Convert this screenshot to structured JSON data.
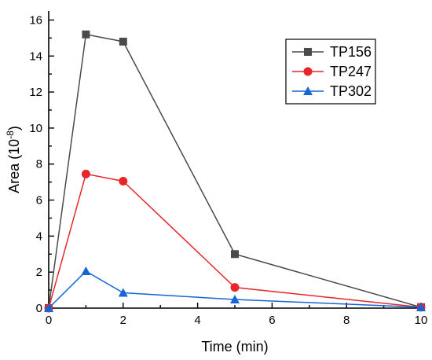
{
  "chart_data": {
    "type": "line",
    "xlabel": "Time (min)",
    "ylabel": "Area (10",
    "ylabel_exponent": "-8",
    "ylabel_close": ")",
    "xlim": [
      0,
      10
    ],
    "ylim": [
      0,
      16.5
    ],
    "x_ticks": [
      0,
      2,
      4,
      6,
      8,
      10
    ],
    "y_ticks": [
      0,
      2,
      4,
      6,
      8,
      10,
      12,
      14,
      16
    ],
    "x_tick_labels": [
      "0",
      "2",
      "4",
      "6",
      "8",
      "10"
    ],
    "y_tick_labels": [
      "0",
      "2",
      "4",
      "6",
      "8",
      "10",
      "12",
      "14",
      "16"
    ],
    "grid": false,
    "legend_position": "top-right",
    "x": [
      0,
      1,
      2,
      5,
      10
    ],
    "series": [
      {
        "name": "TP156",
        "values": [
          0,
          15.2,
          14.8,
          3.0,
          0.05
        ],
        "color": "#4a4a4a",
        "marker": "square"
      },
      {
        "name": "TP247",
        "values": [
          0,
          7.45,
          7.05,
          1.15,
          0.05
        ],
        "color": "#e8262a",
        "marker": "circle"
      },
      {
        "name": "TP302",
        "values": [
          0,
          2.05,
          0.85,
          0.48,
          0.05
        ],
        "color": "#1565d8",
        "marker": "triangle"
      }
    ]
  }
}
